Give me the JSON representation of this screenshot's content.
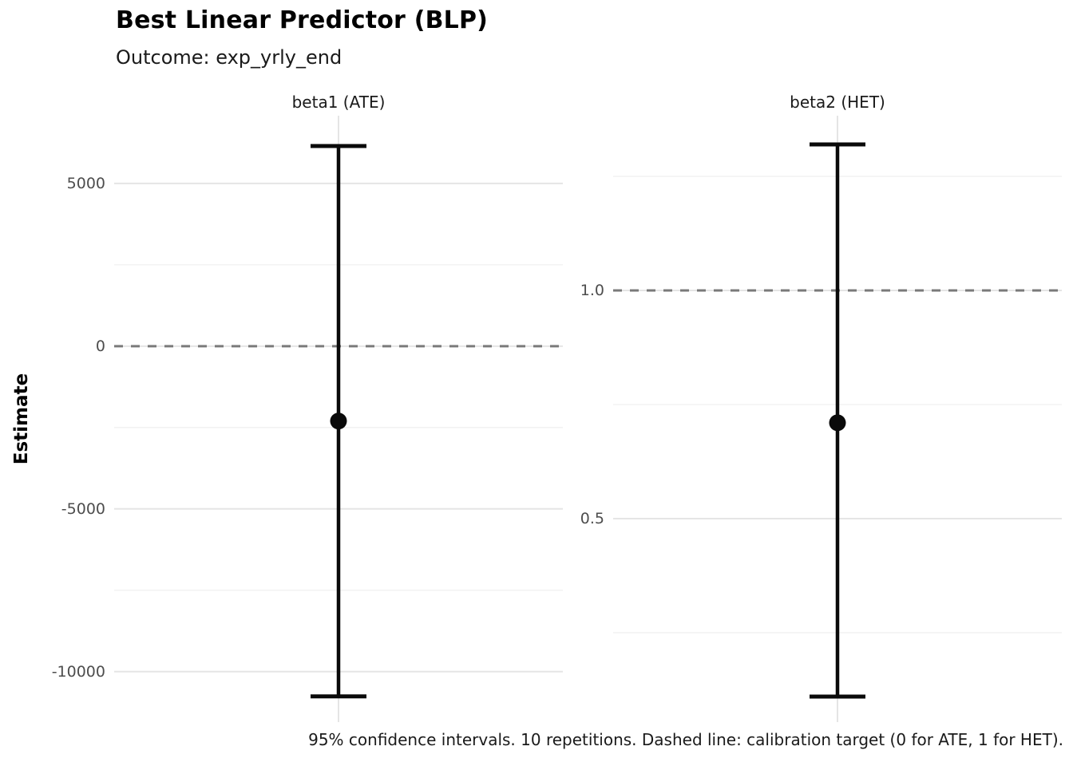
{
  "header": {
    "title": "Best Linear Predictor (BLP)",
    "subtitle": "Outcome: exp_yrly_end"
  },
  "y_axis": {
    "title": "Estimate"
  },
  "caption": "95% confidence intervals. 10 repetitions. Dashed line: calibration target (0 for ATE, 1 for HET).",
  "colors": {
    "background": "#ffffff",
    "point": "#0a0a0a",
    "errorbar": "#0a0a0a",
    "target_line": "#7a7a7a",
    "grid_major": "#e5e5e5",
    "grid_minor": "#f1f1f1",
    "tick_label": "#4d4d4d",
    "text": "#1a1a1a"
  },
  "chart_data": {
    "type": "scatter",
    "subtype": "point-with-errorbar (faceted)",
    "title": "Best Linear Predictor (BLP)",
    "subtitle": "Outcome: exp_yrly_end",
    "ylabel": "Estimate",
    "caption": "95% confidence intervals. 10 repetitions. Dashed line: calibration target (0 for ATE, 1 for HET).",
    "ci_level": "95%",
    "repetitions": 10,
    "grid": true,
    "legend": "none",
    "panels": [
      {
        "facet_label": "beta1 (ATE)",
        "estimate": -2300,
        "ci_lower": -10760,
        "ci_upper": 6150,
        "calibration_target": 0,
        "ylim": [
          -11550,
          7080
        ],
        "major_ticks": [
          {
            "value": 5000,
            "label": "5000"
          },
          {
            "value": 0,
            "label": "0"
          },
          {
            "value": -5000,
            "label": "-5000"
          },
          {
            "value": -10000,
            "label": "-10000"
          }
        ],
        "minor_ticks": [
          2500,
          -2500,
          -7500
        ]
      },
      {
        "facet_label": "beta2 (HET)",
        "estimate": 0.71,
        "ci_lower": 0.11,
        "ci_upper": 1.32,
        "calibration_target": 1,
        "ylim": [
          0.054,
          1.383
        ],
        "major_ticks": [
          {
            "value": 1.0,
            "label": "1.0"
          },
          {
            "value": 0.5,
            "label": "0.5"
          }
        ],
        "minor_ticks": [
          1.25,
          0.75,
          0.25
        ]
      }
    ]
  }
}
